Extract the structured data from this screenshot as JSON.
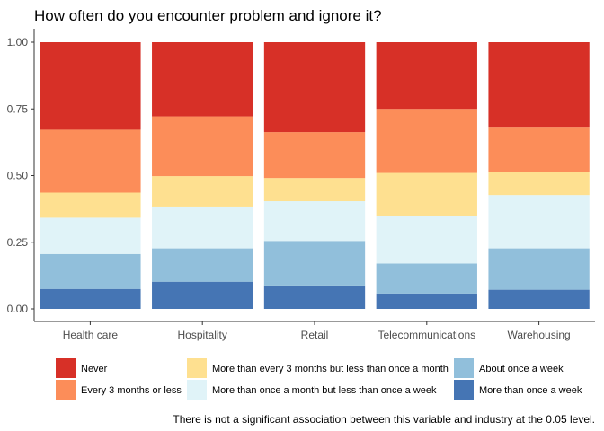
{
  "chart_data": {
    "type": "bar",
    "stacked": true,
    "title": "How often do you encounter problem and ignore it?",
    "xlabel": "",
    "ylabel": "",
    "ylim": [
      0,
      1
    ],
    "y_ticks": [
      "0.00",
      "0.25",
      "0.50",
      "0.75",
      "1.00"
    ],
    "grid": false,
    "legend_position": "bottom",
    "caption": "There is not a significant association between this variable and industry at the 0.05 level.",
    "categories": [
      "Health care",
      "Hospitality",
      "Retail",
      "Telecommunications",
      "Warehousing"
    ],
    "series": [
      {
        "name": "More than once a week",
        "color": "#4575b4",
        "values": [
          0.075,
          0.102,
          0.088,
          0.058,
          0.072
        ]
      },
      {
        "name": "About once a week",
        "color": "#91bfdb",
        "values": [
          0.131,
          0.125,
          0.167,
          0.112,
          0.155
        ]
      },
      {
        "name": "More than once a month but less than once a week",
        "color": "#e0f3f8",
        "values": [
          0.136,
          0.157,
          0.149,
          0.178,
          0.2
        ]
      },
      {
        "name": "More than every 3 months but less than once a month",
        "color": "#fee090",
        "values": [
          0.094,
          0.114,
          0.087,
          0.162,
          0.086
        ]
      },
      {
        "name": "Every 3 months or less",
        "color": "#fc8d59",
        "values": [
          0.236,
          0.224,
          0.172,
          0.24,
          0.17
        ]
      },
      {
        "name": "Never",
        "color": "#d73027",
        "values": [
          0.328,
          0.278,
          0.337,
          0.25,
          0.317
        ]
      }
    ],
    "legend_order": [
      "Never",
      "Every 3 months or less",
      "More than every 3 months but less than once a month",
      "More than once a month but less than once a week",
      "About once a week",
      "More than once a week"
    ]
  }
}
